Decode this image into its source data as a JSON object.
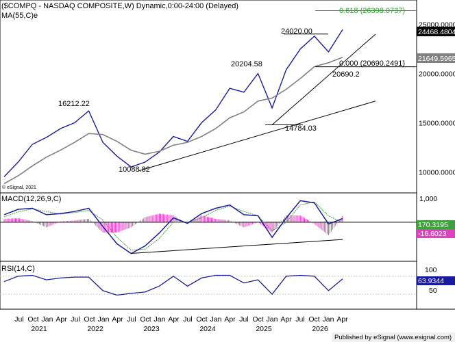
{
  "header": {
    "title": "($COMPQ - NASDAQ COMPOSITE,W) Dynamic,0:00-24:00 (Delayed)",
    "ma_label": "MA(55,C)e",
    "copyright": "© eSignal, 2021",
    "footer": "Published by eSignal (www.esignal.com)"
  },
  "chart_data": [
    {
      "type": "line",
      "panel": "price",
      "title": "($COMPQ - NASDAQ COMPOSITE,W) Dynamic,0:00-24:00 (Delayed)",
      "ylim": [
        8000,
        27200
      ],
      "y_ticks": [
        "25000.0000",
        "20000.0000",
        "15000.0000",
        "10000.0000"
      ],
      "y_tick_values": [
        25000,
        20000,
        15000,
        10000
      ],
      "x": [
        "2020-06",
        "2020-09",
        "2021-01",
        "2021-04",
        "2021-07",
        "2021-10",
        "2022-01",
        "2022-04",
        "2022-07",
        "2022-10",
        "2023-01",
        "2023-04",
        "2023-07",
        "2023-10",
        "2024-01",
        "2024-04",
        "2024-07",
        "2024-10",
        "2025-01",
        "2025-04",
        "2025-07",
        "2025-10",
        "2026-01",
        "2026-02",
        "2026-03"
      ],
      "series": [
        {
          "name": "$COMPQ",
          "values": [
            9500,
            11000,
            12800,
            13500,
            14400,
            15000,
            16200,
            13000,
            11600,
            10500,
            11000,
            12000,
            13600,
            13100,
            15000,
            16300,
            18500,
            18100,
            20000,
            16500,
            20400,
            22500,
            23800,
            22200,
            24468
          ]
        },
        {
          "name": "MA(55,C)e",
          "values": [
            8800,
            9600,
            10600,
            11500,
            12200,
            13000,
            13900,
            13800,
            13100,
            12200,
            11800,
            12100,
            12700,
            13000,
            13600,
            14400,
            15500,
            16100,
            17200,
            17500,
            18400,
            19500,
            20700,
            21100,
            21650
          ]
        }
      ],
      "last_values": {
        "price": "24468.4804",
        "ma": "21649.5965"
      },
      "annotations": {
        "peak_2021": "16212.22",
        "low_2022": "10088.82",
        "peak_2024": "20204.58",
        "low_2025": "14784.03",
        "peak_2025": "24020.00",
        "low_2026": "20690.2",
        "fib_0": "0.000 (20690.2491)",
        "fib_618": "0.618 (26398.0737)"
      }
    },
    {
      "type": "line",
      "panel": "macd",
      "title": "MACD(12,26,9,C)",
      "ylim": [
        -1750,
        1300
      ],
      "y_ticks": [
        "1,000"
      ],
      "series": [
        {
          "name": "MACD",
          "values": [
            350,
            600,
            650,
            350,
            400,
            500,
            650,
            -200,
            -1000,
            -1450,
            -1100,
            -500,
            200,
            -50,
            400,
            650,
            800,
            350,
            300,
            -700,
            200,
            1000,
            900,
            -80,
            170
          ]
        },
        {
          "name": "Signal",
          "values": [
            250,
            480,
            620,
            500,
            380,
            450,
            550,
            100,
            -700,
            -1300,
            -1250,
            -750,
            0,
            0,
            200,
            550,
            750,
            500,
            300,
            -400,
            0,
            800,
            950,
            300,
            -17
          ]
        }
      ],
      "last_values": {
        "macd": "170.3195",
        "signal": "-16.6023"
      }
    },
    {
      "type": "line",
      "panel": "rsi",
      "title": "RSI(14,C)",
      "ylim": [
        0,
        100
      ],
      "y_ticks": [
        "100",
        "50"
      ],
      "series": [
        {
          "name": "RSI",
          "values": [
            58,
            70,
            72,
            62,
            66,
            68,
            68,
            38,
            28,
            32,
            35,
            48,
            70,
            48,
            66,
            72,
            72,
            55,
            62,
            30,
            70,
            72,
            70,
            38,
            63.9
          ]
        }
      ],
      "last_value": "63.9344"
    }
  ],
  "x_axis": {
    "months": [
      "Jul",
      "Oct",
      "Jan",
      "Apr",
      "Jul",
      "Oct",
      "Jan",
      "Apr",
      "Jul",
      "Oct",
      "Jan",
      "Apr",
      "Jul",
      "Oct",
      "Jan",
      "Apr",
      "Jul",
      "Oct",
      "Jan",
      "Apr",
      "Jul",
      "Oct",
      "Jan",
      "Apr"
    ],
    "years": [
      "2021",
      "2022",
      "2023",
      "2024",
      "2025",
      "2026"
    ]
  },
  "colors": {
    "price": "#1a1aa0",
    "ma": "#808080",
    "macd": "#1a1aa0",
    "signal": "#40a040",
    "histogram": "#e040c0",
    "fib": "#22aa22",
    "rsi": "#1a1aa0"
  }
}
